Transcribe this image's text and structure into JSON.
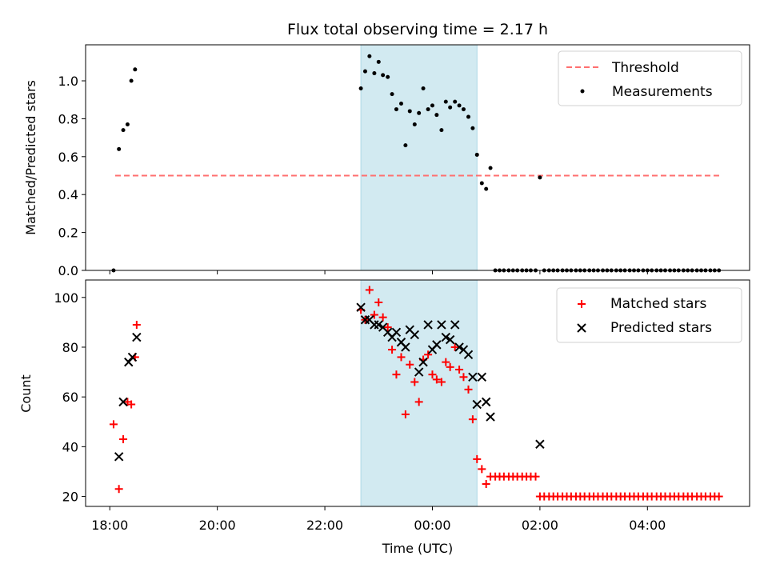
{
  "title": "Flux total observing time = 2.17 h",
  "colors": {
    "threshold": "#ff7070",
    "measurement": "#000000",
    "matched": "#ff0000",
    "predicted": "#000000",
    "shade": "#add8e6"
  },
  "chart_data": [
    {
      "type": "scatter",
      "ylabel": "Matched/Predicted stars",
      "ylim": [
        0,
        1.19
      ],
      "yticks": [
        "0.0",
        "0.2",
        "0.4",
        "0.6",
        "0.8",
        "1.0"
      ],
      "shaded_interval_hours": [
        22.67,
        24.83
      ],
      "threshold": {
        "value": 0.5,
        "x_range": [
          18.1,
          29.35
        ],
        "name": "Threshold"
      },
      "legend": {
        "position": "upper right",
        "entries": [
          "Threshold",
          "Measurements"
        ]
      },
      "series": [
        {
          "name": "Measurements",
          "points": [
            [
              18.07,
              0.0
            ],
            [
              18.17,
              0.64
            ],
            [
              18.25,
              0.74
            ],
            [
              18.33,
              0.77
            ],
            [
              18.4,
              1.0
            ],
            [
              18.47,
              1.06
            ],
            [
              22.67,
              0.96
            ],
            [
              22.75,
              1.05
            ],
            [
              22.83,
              1.13
            ],
            [
              22.92,
              1.04
            ],
            [
              23.0,
              1.1
            ],
            [
              23.08,
              1.03
            ],
            [
              23.17,
              1.02
            ],
            [
              23.25,
              0.93
            ],
            [
              23.33,
              0.85
            ],
            [
              23.42,
              0.88
            ],
            [
              23.5,
              0.66
            ],
            [
              23.58,
              0.84
            ],
            [
              23.67,
              0.77
            ],
            [
              23.75,
              0.83
            ],
            [
              23.83,
              0.96
            ],
            [
              23.92,
              0.85
            ],
            [
              24.0,
              0.87
            ],
            [
              24.08,
              0.82
            ],
            [
              24.17,
              0.74
            ],
            [
              24.25,
              0.89
            ],
            [
              24.33,
              0.86
            ],
            [
              24.42,
              0.89
            ],
            [
              24.5,
              0.87
            ],
            [
              24.58,
              0.85
            ],
            [
              24.67,
              0.81
            ],
            [
              24.75,
              0.75
            ],
            [
              24.83,
              0.61
            ],
            [
              24.92,
              0.46
            ],
            [
              25.0,
              0.43
            ],
            [
              25.08,
              0.54
            ],
            [
              25.17,
              0.0
            ],
            [
              25.25,
              0.0
            ],
            [
              25.33,
              0.0
            ],
            [
              25.42,
              0.0
            ],
            [
              25.5,
              0.0
            ],
            [
              25.58,
              0.0
            ],
            [
              25.67,
              0.0
            ],
            [
              25.75,
              0.0
            ],
            [
              25.83,
              0.0
            ],
            [
              25.92,
              0.0
            ],
            [
              26.0,
              0.49
            ],
            [
              26.08,
              0.0
            ],
            [
              26.17,
              0.0
            ],
            [
              26.25,
              0.0
            ],
            [
              26.33,
              0.0
            ],
            [
              26.42,
              0.0
            ],
            [
              26.5,
              0.0
            ],
            [
              26.58,
              0.0
            ],
            [
              26.67,
              0.0
            ],
            [
              26.75,
              0.0
            ],
            [
              26.83,
              0.0
            ],
            [
              26.92,
              0.0
            ],
            [
              27.0,
              0.0
            ],
            [
              27.08,
              0.0
            ],
            [
              27.17,
              0.0
            ],
            [
              27.25,
              0.0
            ],
            [
              27.33,
              0.0
            ],
            [
              27.42,
              0.0
            ],
            [
              27.5,
              0.0
            ],
            [
              27.58,
              0.0
            ],
            [
              27.67,
              0.0
            ],
            [
              27.75,
              0.0
            ],
            [
              27.83,
              0.0
            ],
            [
              27.92,
              0.0
            ],
            [
              28.0,
              0.0
            ],
            [
              28.08,
              0.0
            ],
            [
              28.17,
              0.0
            ],
            [
              28.25,
              0.0
            ],
            [
              28.33,
              0.0
            ],
            [
              28.42,
              0.0
            ],
            [
              28.5,
              0.0
            ],
            [
              28.58,
              0.0
            ],
            [
              28.67,
              0.0
            ],
            [
              28.75,
              0.0
            ],
            [
              28.83,
              0.0
            ],
            [
              28.92,
              0.0
            ],
            [
              29.0,
              0.0
            ],
            [
              29.08,
              0.0
            ],
            [
              29.17,
              0.0
            ],
            [
              29.25,
              0.0
            ],
            [
              29.33,
              0.0
            ]
          ]
        }
      ]
    },
    {
      "type": "scatter",
      "xlabel": "Time (UTC)",
      "ylabel": "Count",
      "xlim": [
        17.55,
        29.9
      ],
      "xticks": [
        {
          "value": 18,
          "label": "18:00"
        },
        {
          "value": 20,
          "label": "20:00"
        },
        {
          "value": 22,
          "label": "22:00"
        },
        {
          "value": 24,
          "label": "00:00"
        },
        {
          "value": 26,
          "label": "02:00"
        },
        {
          "value": 28,
          "label": "04:00"
        }
      ],
      "ylim": [
        16,
        107
      ],
      "yticks": [
        "20",
        "40",
        "60",
        "80",
        "100"
      ],
      "shaded_interval_hours": [
        22.67,
        24.83
      ],
      "legend": {
        "position": "upper right",
        "entries": [
          "Matched stars",
          "Predicted stars"
        ]
      },
      "series": [
        {
          "name": "Matched stars",
          "marker": "plus",
          "points": [
            [
              18.07,
              49
            ],
            [
              18.17,
              23
            ],
            [
              18.25,
              43
            ],
            [
              18.33,
              58
            ],
            [
              18.4,
              57
            ],
            [
              18.47,
              76
            ],
            [
              18.5,
              89
            ],
            [
              22.67,
              95
            ],
            [
              22.75,
              91
            ],
            [
              22.83,
              103
            ],
            [
              22.92,
              93
            ],
            [
              23.0,
              98
            ],
            [
              23.08,
              92
            ],
            [
              23.17,
              88
            ],
            [
              23.25,
              79
            ],
            [
              23.33,
              69
            ],
            [
              23.42,
              76
            ],
            [
              23.5,
              53
            ],
            [
              23.58,
              73
            ],
            [
              23.67,
              66
            ],
            [
              23.75,
              58
            ],
            [
              23.83,
              75
            ],
            [
              23.92,
              77
            ],
            [
              24.0,
              69
            ],
            [
              24.08,
              67
            ],
            [
              24.17,
              66
            ],
            [
              24.25,
              74
            ],
            [
              24.33,
              72
            ],
            [
              24.42,
              80
            ],
            [
              24.5,
              71
            ],
            [
              24.58,
              68
            ],
            [
              24.67,
              63
            ],
            [
              24.75,
              51
            ],
            [
              24.83,
              35
            ],
            [
              24.92,
              31
            ],
            [
              25.0,
              25
            ],
            [
              25.08,
              28
            ],
            [
              25.17,
              28
            ],
            [
              25.25,
              28
            ],
            [
              25.33,
              28
            ],
            [
              25.42,
              28
            ],
            [
              25.5,
              28
            ],
            [
              25.58,
              28
            ],
            [
              25.67,
              28
            ],
            [
              25.75,
              28
            ],
            [
              25.83,
              28
            ],
            [
              25.92,
              28
            ],
            [
              26.0,
              20
            ],
            [
              26.08,
              20
            ],
            [
              26.17,
              20
            ],
            [
              26.25,
              20
            ],
            [
              26.33,
              20
            ],
            [
              26.42,
              20
            ],
            [
              26.5,
              20
            ],
            [
              26.58,
              20
            ],
            [
              26.67,
              20
            ],
            [
              26.75,
              20
            ],
            [
              26.83,
              20
            ],
            [
              26.92,
              20
            ],
            [
              27.0,
              20
            ],
            [
              27.08,
              20
            ],
            [
              27.17,
              20
            ],
            [
              27.25,
              20
            ],
            [
              27.33,
              20
            ],
            [
              27.42,
              20
            ],
            [
              27.5,
              20
            ],
            [
              27.58,
              20
            ],
            [
              27.67,
              20
            ],
            [
              27.75,
              20
            ],
            [
              27.83,
              20
            ],
            [
              27.92,
              20
            ],
            [
              28.0,
              20
            ],
            [
              28.08,
              20
            ],
            [
              28.17,
              20
            ],
            [
              28.25,
              20
            ],
            [
              28.33,
              20
            ],
            [
              28.42,
              20
            ],
            [
              28.5,
              20
            ],
            [
              28.58,
              20
            ],
            [
              28.67,
              20
            ],
            [
              28.75,
              20
            ],
            [
              28.83,
              20
            ],
            [
              28.92,
              20
            ],
            [
              29.0,
              20
            ],
            [
              29.08,
              20
            ],
            [
              29.17,
              20
            ],
            [
              29.25,
              20
            ],
            [
              29.33,
              20
            ]
          ]
        },
        {
          "name": "Predicted stars",
          "marker": "x",
          "points": [
            [
              18.17,
              36
            ],
            [
              18.25,
              58
            ],
            [
              18.35,
              74
            ],
            [
              18.42,
              76
            ],
            [
              18.5,
              84
            ],
            [
              22.67,
              96
            ],
            [
              22.75,
              91
            ],
            [
              22.83,
              91
            ],
            [
              22.92,
              89
            ],
            [
              23.0,
              89
            ],
            [
              23.08,
              88
            ],
            [
              23.17,
              86
            ],
            [
              23.25,
              84
            ],
            [
              23.33,
              86
            ],
            [
              23.42,
              82
            ],
            [
              23.5,
              80
            ],
            [
              23.58,
              87
            ],
            [
              23.67,
              85
            ],
            [
              23.75,
              70
            ],
            [
              23.83,
              74
            ],
            [
              23.92,
              89
            ],
            [
              24.0,
              79
            ],
            [
              24.08,
              81
            ],
            [
              24.17,
              89
            ],
            [
              24.25,
              84
            ],
            [
              24.33,
              83
            ],
            [
              24.42,
              89
            ],
            [
              24.5,
              80
            ],
            [
              24.58,
              79
            ],
            [
              24.67,
              77
            ],
            [
              24.75,
              68
            ],
            [
              24.83,
              57
            ],
            [
              24.92,
              68
            ],
            [
              25.0,
              58
            ],
            [
              25.08,
              52
            ],
            [
              26.0,
              41
            ]
          ]
        }
      ]
    }
  ]
}
